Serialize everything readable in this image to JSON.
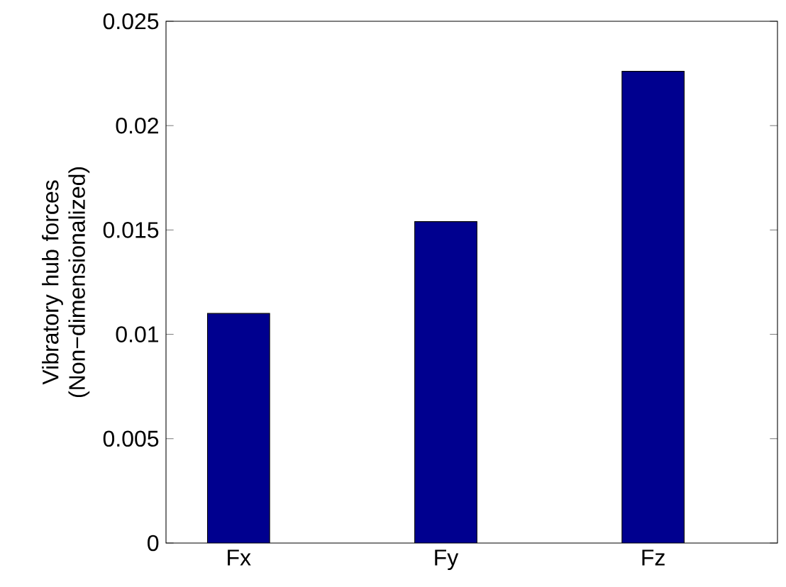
{
  "chart_data": {
    "type": "bar",
    "categories": [
      "Fx",
      "Fy",
      "Fz"
    ],
    "values": [
      0.011,
      0.0154,
      0.0226
    ],
    "color": "#00008f",
    "ylabel": "Vibratory hub forces (Non−dimensionalized)",
    "ylim": [
      0,
      0.025
    ],
    "yticks": [
      0,
      0.005,
      0.01,
      0.015,
      0.02,
      0.025
    ]
  }
}
